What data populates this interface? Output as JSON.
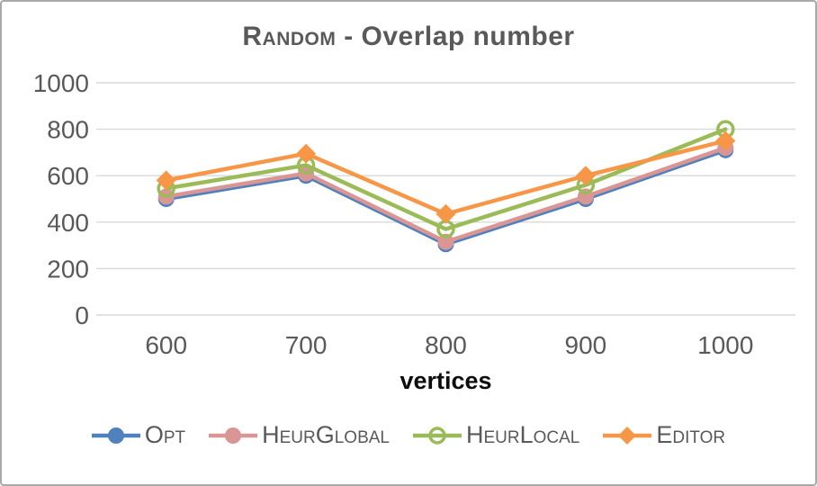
{
  "title": {
    "prefix_smallcaps": "Random",
    "rest": " - Overlap number"
  },
  "xlabel": "vertices",
  "colors": {
    "gridline": "#d9d9d9",
    "title_text": "#595959",
    "tick_text": "#595959",
    "xlabel_text": "#0d0d0d",
    "legend_text": "#595959",
    "frame_border": "#a9a9a9",
    "background": "#ffffff"
  },
  "chart_data": {
    "type": "line",
    "title": "Random - Overlap number",
    "xlabel": "vertices",
    "ylabel": "",
    "categories": [
      600,
      700,
      800,
      900,
      1000
    ],
    "yticks": [
      0,
      200,
      400,
      600,
      800,
      1000
    ],
    "ylim": [
      0,
      1000
    ],
    "grid": "horizontal",
    "legend_position": "bottom",
    "series": [
      {
        "name": "Opt",
        "color": "#4F81BD",
        "marker": "circle",
        "values": [
          500,
          600,
          305,
          500,
          710
        ]
      },
      {
        "name": "HeurGlobal",
        "color": "#D99694",
        "marker": "circle",
        "values": [
          510,
          610,
          315,
          510,
          720
        ]
      },
      {
        "name": "HeurLocal",
        "color": "#9BBB59",
        "marker": "circle-open",
        "values": [
          545,
          645,
          370,
          560,
          800
        ]
      },
      {
        "name": "Editor",
        "color": "#F79646",
        "marker": "diamond",
        "values": [
          580,
          695,
          435,
          600,
          750
        ]
      }
    ]
  }
}
